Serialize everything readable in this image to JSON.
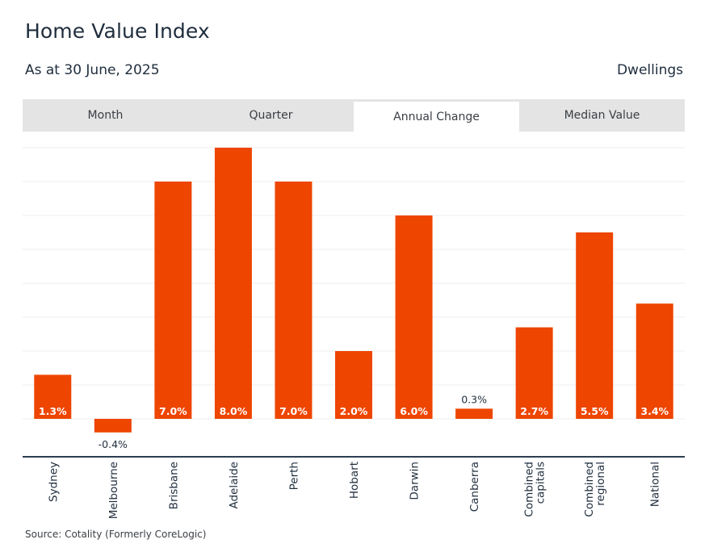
{
  "header": {
    "title": "Home Value Index",
    "subtitle": "As at 30 June, 2025",
    "measure": "Dwellings"
  },
  "tabs": [
    {
      "label": "Month",
      "active": false
    },
    {
      "label": "Quarter",
      "active": false
    },
    {
      "label": "Annual Change",
      "active": true
    },
    {
      "label": "Median Value",
      "active": false
    }
  ],
  "colors": {
    "bar": "#ee4500",
    "grid": "#ececec",
    "axis": "#2d3e50"
  },
  "chart_data": {
    "type": "bar",
    "title": "Home Value Index",
    "categories": [
      "Sydney",
      "Melbourne",
      "Brisbane",
      "Adelaide",
      "Perth",
      "Hobart",
      "Darwin",
      "Canberra",
      "Combined capitals",
      "Combined regional",
      "National"
    ],
    "category_lines": [
      [
        "Sydney"
      ],
      [
        "Melbourne"
      ],
      [
        "Brisbane"
      ],
      [
        "Adelaide"
      ],
      [
        "Perth"
      ],
      [
        "Hobart"
      ],
      [
        "Darwin"
      ],
      [
        "Canberra"
      ],
      [
        "Combined",
        "capitals"
      ],
      [
        "Combined",
        "regional"
      ],
      [
        "National"
      ]
    ],
    "values": [
      1.3,
      -0.4,
      7.0,
      8.0,
      7.0,
      2.0,
      6.0,
      0.3,
      2.7,
      5.5,
      3.4
    ],
    "labels": [
      "1.3%",
      "-0.4%",
      "7.0%",
      "8.0%",
      "7.0%",
      "2.0%",
      "6.0%",
      "0.3%",
      "2.7%",
      "5.5%",
      "3.4%"
    ],
    "ylim": [
      -1,
      8
    ],
    "gridlines": [
      0,
      1,
      2,
      3,
      4,
      5,
      6,
      7,
      8
    ],
    "xlabel": "",
    "ylabel": ""
  },
  "footer": {
    "source": "Source: Cotality (Formerly CoreLogic)"
  }
}
